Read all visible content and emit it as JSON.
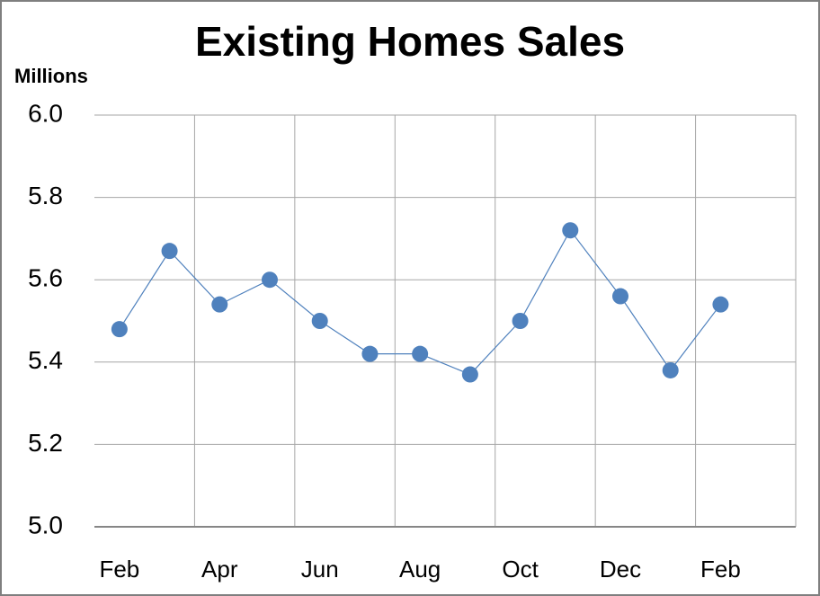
{
  "chart_data": {
    "type": "line",
    "title": "Existing Homes Sales",
    "y_label": "Millions",
    "categories": [
      "Feb",
      null,
      "Apr",
      null,
      "Jun",
      null,
      "Aug",
      null,
      "Oct",
      null,
      "Dec",
      null,
      "Feb",
      null
    ],
    "series": [
      {
        "color": "#4f81bd",
        "values": [
          5.48,
          5.67,
          5.54,
          5.6,
          5.5,
          5.42,
          5.42,
          5.37,
          5.5,
          5.72,
          5.56,
          5.38,
          5.54,
          null
        ]
      }
    ],
    "ylim": [
      5.0,
      6.0
    ],
    "yticks": [
      {
        "value": 5,
        "label": "5.0"
      },
      {
        "value": 5.2,
        "label": "5.2"
      },
      {
        "value": 5.4,
        "label": "5.4"
      },
      {
        "value": 5.6,
        "label": "5.6"
      },
      {
        "value": 5.8,
        "label": "5.8"
      },
      {
        "value": 6,
        "label": "6.0"
      }
    ],
    "grid": true
  }
}
